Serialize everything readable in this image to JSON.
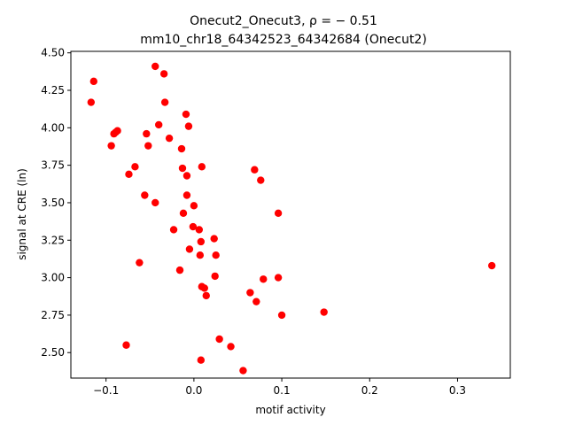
{
  "chart_data": {
    "type": "scatter",
    "title_line1": "Onecut2_Onecut3, ρ = − 0.51",
    "title_line2": "mm10_chr18_64342523_64342684 (Onecut2)",
    "xlabel": "motif activity",
    "ylabel": "signal at CRE (ln)",
    "xlim": [
      -0.14,
      0.36
    ],
    "ylim": [
      2.33,
      4.51
    ],
    "xticks": [
      -0.1,
      0.0,
      0.1,
      0.2,
      0.3
    ],
    "xtick_labels": [
      "−0.1",
      "0.0",
      "0.1",
      "0.2",
      "0.3"
    ],
    "yticks": [
      2.5,
      2.75,
      3.0,
      3.25,
      3.5,
      3.75,
      4.0,
      4.25,
      4.5
    ],
    "ytick_labels": [
      "2.50",
      "2.75",
      "3.00",
      "3.25",
      "3.50",
      "3.75",
      "4.00",
      "4.25",
      "4.50"
    ],
    "grid": false,
    "marker_color": "#ff0000",
    "points": [
      {
        "x": -0.117,
        "y": 4.17
      },
      {
        "x": -0.114,
        "y": 4.31
      },
      {
        "x": -0.094,
        "y": 3.88
      },
      {
        "x": -0.091,
        "y": 3.96
      },
      {
        "x": -0.089,
        "y": 3.97
      },
      {
        "x": -0.087,
        "y": 3.98
      },
      {
        "x": -0.077,
        "y": 2.55
      },
      {
        "x": -0.074,
        "y": 3.69
      },
      {
        "x": -0.067,
        "y": 3.74
      },
      {
        "x": -0.062,
        "y": 3.1
      },
      {
        "x": -0.056,
        "y": 3.55
      },
      {
        "x": -0.054,
        "y": 3.96
      },
      {
        "x": -0.052,
        "y": 3.88
      },
      {
        "x": -0.044,
        "y": 4.41
      },
      {
        "x": -0.044,
        "y": 3.5
      },
      {
        "x": -0.04,
        "y": 4.02
      },
      {
        "x": -0.034,
        "y": 4.36
      },
      {
        "x": -0.033,
        "y": 4.17
      },
      {
        "x": -0.028,
        "y": 3.93
      },
      {
        "x": -0.023,
        "y": 3.32
      },
      {
        "x": -0.016,
        "y": 3.05
      },
      {
        "x": -0.014,
        "y": 3.86
      },
      {
        "x": -0.013,
        "y": 3.73
      },
      {
        "x": -0.012,
        "y": 3.43
      },
      {
        "x": -0.009,
        "y": 4.09
      },
      {
        "x": -0.008,
        "y": 3.55
      },
      {
        "x": -0.008,
        "y": 3.68
      },
      {
        "x": -0.006,
        "y": 4.01
      },
      {
        "x": -0.005,
        "y": 3.19
      },
      {
        "x": -0.001,
        "y": 3.34
      },
      {
        "x": 0.0,
        "y": 3.48
      },
      {
        "x": 0.006,
        "y": 3.32
      },
      {
        "x": 0.007,
        "y": 3.15
      },
      {
        "x": 0.008,
        "y": 3.24
      },
      {
        "x": 0.008,
        "y": 2.45
      },
      {
        "x": 0.009,
        "y": 2.94
      },
      {
        "x": 0.009,
        "y": 3.74
      },
      {
        "x": 0.012,
        "y": 2.93
      },
      {
        "x": 0.014,
        "y": 2.88
      },
      {
        "x": 0.023,
        "y": 3.26
      },
      {
        "x": 0.024,
        "y": 3.01
      },
      {
        "x": 0.025,
        "y": 3.15
      },
      {
        "x": 0.029,
        "y": 2.59
      },
      {
        "x": 0.042,
        "y": 2.54
      },
      {
        "x": 0.056,
        "y": 2.38
      },
      {
        "x": 0.064,
        "y": 2.9
      },
      {
        "x": 0.069,
        "y": 3.72
      },
      {
        "x": 0.071,
        "y": 2.84
      },
      {
        "x": 0.076,
        "y": 3.65
      },
      {
        "x": 0.079,
        "y": 2.99
      },
      {
        "x": 0.096,
        "y": 3.43
      },
      {
        "x": 0.096,
        "y": 3.0
      },
      {
        "x": 0.1,
        "y": 2.75
      },
      {
        "x": 0.148,
        "y": 2.77
      },
      {
        "x": 0.339,
        "y": 3.08
      }
    ]
  }
}
